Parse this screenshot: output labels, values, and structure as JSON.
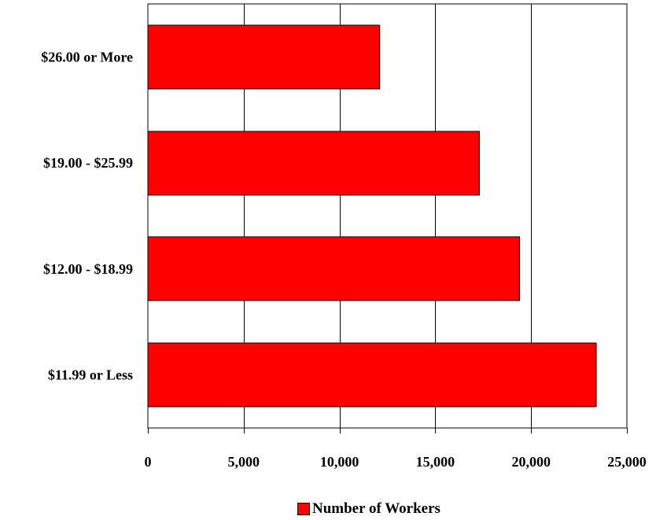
{
  "chart_data": {
    "type": "bar",
    "orientation": "horizontal",
    "title": "",
    "xlabel": "",
    "ylabel": "",
    "categories": [
      "$26.00 or More",
      "$19.00 - $25.99",
      "$12.00 - $18.99",
      "$11.99 or Less"
    ],
    "series": [
      {
        "name": "Number of Workers",
        "values": [
          12100,
          17300,
          19400,
          23400
        ],
        "color": "#ff0000"
      }
    ],
    "xlim": [
      0,
      25000
    ],
    "x_ticks": [
      0,
      5000,
      10000,
      15000,
      20000,
      25000
    ],
    "x_tick_labels": [
      "0",
      "5,000",
      "10,000",
      "15,000",
      "20,000",
      "25,000"
    ],
    "grid": "vertical",
    "legend_position": "bottom-center"
  }
}
